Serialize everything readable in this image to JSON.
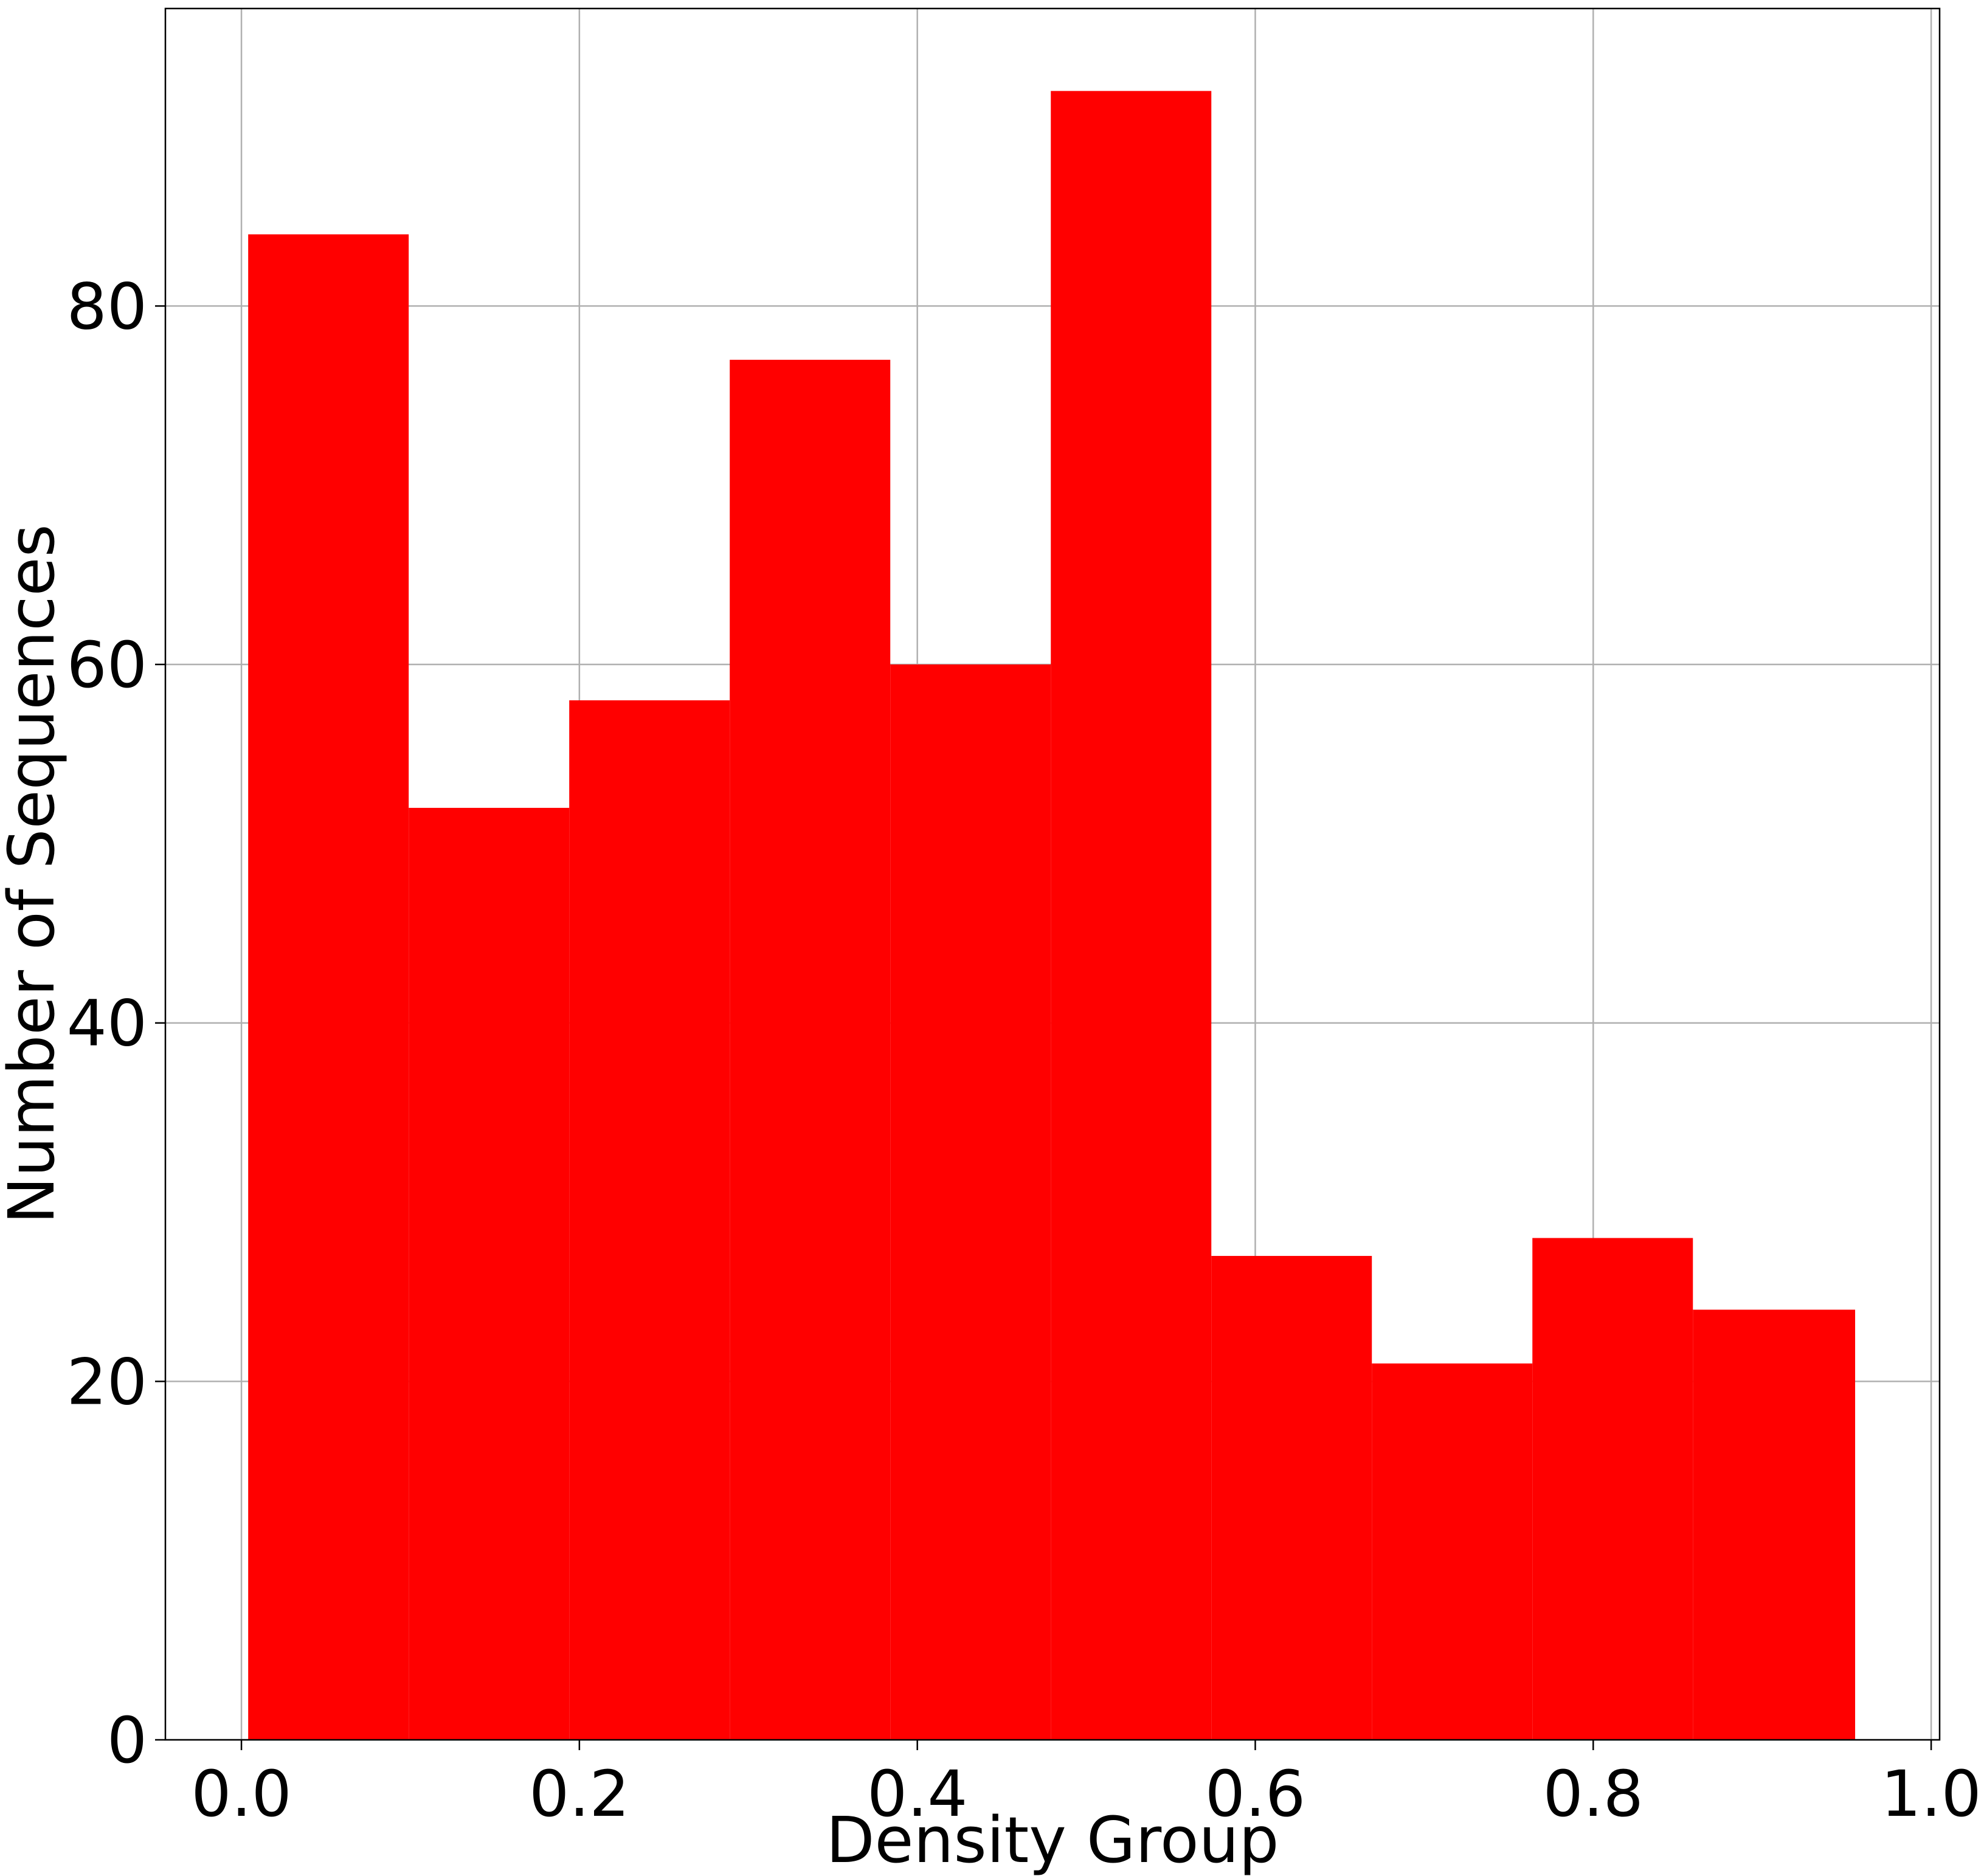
{
  "chart_data": {
    "type": "bar",
    "title": "",
    "xlabel": "Density Group",
    "ylabel": "Number of Sequences",
    "bar_color": "#ff0000",
    "grid": true,
    "xlim": [
      -0.045,
      1.005
    ],
    "ylim": [
      0,
      96.6
    ],
    "xticks": [
      0.0,
      0.2,
      0.4,
      0.6,
      0.8,
      1.0
    ],
    "xtick_labels": [
      "0.0",
      "0.2",
      "0.4",
      "0.6",
      "0.8",
      "1.0"
    ],
    "yticks": [
      0,
      20,
      40,
      60,
      80
    ],
    "ytick_labels": [
      "0",
      "20",
      "40",
      "60",
      "80"
    ],
    "bins": [
      {
        "x0": 0.004,
        "x1": 0.099,
        "value": 84
      },
      {
        "x0": 0.099,
        "x1": 0.194,
        "value": 52
      },
      {
        "x0": 0.194,
        "x1": 0.289,
        "value": 58
      },
      {
        "x0": 0.289,
        "x1": 0.384,
        "value": 77
      },
      {
        "x0": 0.384,
        "x1": 0.479,
        "value": 60
      },
      {
        "x0": 0.479,
        "x1": 0.574,
        "value": 92
      },
      {
        "x0": 0.574,
        "x1": 0.669,
        "value": 27
      },
      {
        "x0": 0.669,
        "x1": 0.764,
        "value": 21
      },
      {
        "x0": 0.764,
        "x1": 0.859,
        "value": 28
      },
      {
        "x0": 0.859,
        "x1": 0.955,
        "value": 24
      }
    ]
  }
}
